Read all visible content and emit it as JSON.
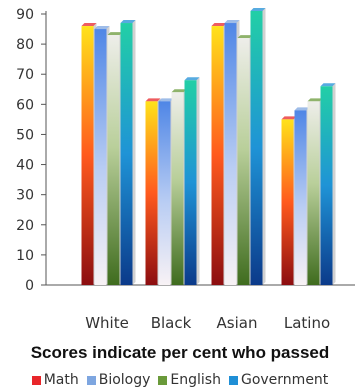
{
  "chart_data": {
    "type": "bar",
    "title": "",
    "subtitle": "Scores indicate per cent who passed",
    "xlabel": "",
    "ylabel": "",
    "categories": [
      "White",
      "Black",
      "Asian",
      "Latino"
    ],
    "ylim": [
      0,
      90
    ],
    "yticks": [
      "0",
      "10",
      "20",
      "30",
      "40",
      "50",
      "60",
      "70",
      "80",
      "90"
    ],
    "grid": false,
    "legend_position": "bottom",
    "series": [
      {
        "name": "Math",
        "values": [
          86,
          61,
          86,
          55
        ],
        "color": "#e8262a"
      },
      {
        "name": "Biology",
        "values": [
          85,
          61,
          87,
          58
        ],
        "color": "#7ea6e0"
      },
      {
        "name": "English",
        "values": [
          83,
          64,
          82,
          61
        ],
        "color": "#6a9a3a"
      },
      {
        "name": "Government",
        "values": [
          87,
          68,
          91,
          66
        ],
        "color": "#1f8fd6"
      }
    ]
  }
}
